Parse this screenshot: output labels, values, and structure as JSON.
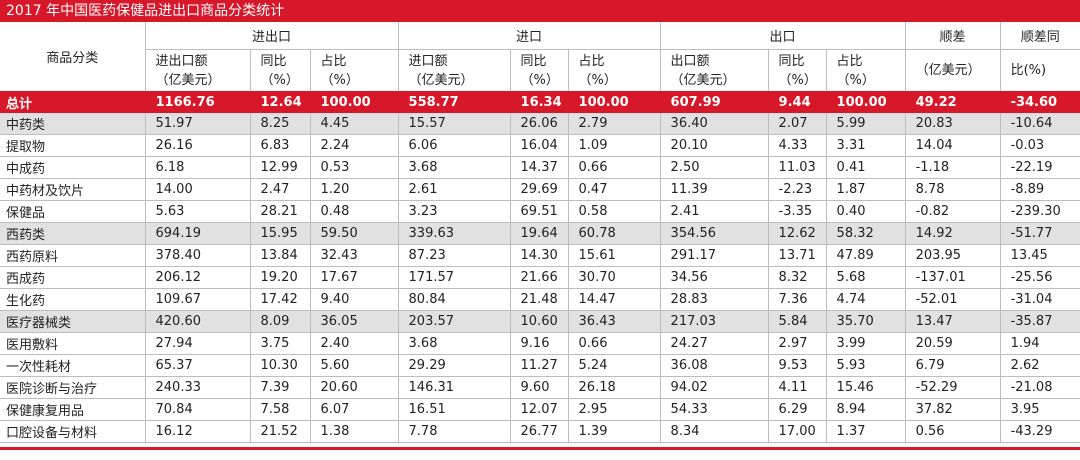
{
  "title": "2017 年中国医药保健品进出口商品分类统计",
  "table": {
    "first_header": "商品分类",
    "groups": [
      "进出口",
      "进口",
      "出口"
    ],
    "balance_header": [
      "顺差",
      "（亿美元）"
    ],
    "balance_yoy_header": [
      "顺差同",
      "比(%)"
    ],
    "sub_headers": [
      [
        "进出口额",
        "（亿美元）"
      ],
      [
        "同比",
        "（%）"
      ],
      [
        "占比",
        "（%）"
      ],
      [
        "进口额",
        "（亿美元）"
      ],
      [
        "同比",
        "（%）"
      ],
      [
        "占比",
        "（%）"
      ],
      [
        "出口额",
        "（亿美元）"
      ],
      [
        "同比",
        "（%）"
      ],
      [
        "占比",
        "（%）"
      ]
    ],
    "total": [
      "总计",
      "1166.76",
      "12.64",
      "100.00",
      "558.77",
      "16.34",
      "100.00",
      "607.99",
      "9.44",
      "100.00",
      "49.22",
      "-34.60"
    ],
    "rows": [
      [
        "中药类",
        "51.97",
        "8.25",
        "4.45",
        "15.57",
        "26.06",
        "2.79",
        "36.40",
        "2.07",
        "5.99",
        "20.83",
        "-10.64"
      ],
      [
        "提取物",
        "26.16",
        "6.83",
        "2.24",
        "6.06",
        "16.04",
        "1.09",
        "20.10",
        "4.33",
        "3.31",
        "14.04",
        "-0.03"
      ],
      [
        "中成药",
        "6.18",
        "12.99",
        "0.53",
        "3.68",
        "14.37",
        "0.66",
        "2.50",
        "11.03",
        "0.41",
        "-1.18",
        "-22.19"
      ],
      [
        "中药材及饮片",
        "14.00",
        "2.47",
        "1.20",
        "2.61",
        "29.69",
        "0.47",
        "11.39",
        "-2.23",
        "1.87",
        "8.78",
        "-8.89"
      ],
      [
        "保健品",
        "5.63",
        "28.21",
        "0.48",
        "3.23",
        "69.51",
        "0.58",
        "2.41",
        "-3.35",
        "0.40",
        "-0.82",
        "-239.30"
      ],
      [
        "西药类",
        "694.19",
        "15.95",
        "59.50",
        "339.63",
        "19.64",
        "60.78",
        "354.56",
        "12.62",
        "58.32",
        "14.92",
        "-51.77"
      ],
      [
        "西药原料",
        "378.40",
        "13.84",
        "32.43",
        "87.23",
        "14.30",
        "15.61",
        "291.17",
        "13.71",
        "47.89",
        "203.95",
        "13.45"
      ],
      [
        "西成药",
        "206.12",
        "19.20",
        "17.67",
        "171.57",
        "21.66",
        "30.70",
        "34.56",
        "8.32",
        "5.68",
        "-137.01",
        "-25.56"
      ],
      [
        "生化药",
        "109.67",
        "17.42",
        "9.40",
        "80.84",
        "21.48",
        "14.47",
        "28.83",
        "7.36",
        "4.74",
        "-52.01",
        "-31.04"
      ],
      [
        "医疗器械类",
        "420.60",
        "8.09",
        "36.05",
        "203.57",
        "10.60",
        "36.43",
        "217.03",
        "5.84",
        "35.70",
        "13.47",
        "-35.87"
      ],
      [
        "医用敷料",
        "27.94",
        "3.75",
        "2.40",
        "3.68",
        "9.16",
        "0.66",
        "24.27",
        "2.97",
        "3.99",
        "20.59",
        "1.94"
      ],
      [
        "一次性耗材",
        "65.37",
        "10.30",
        "5.60",
        "29.29",
        "11.27",
        "5.24",
        "36.08",
        "9.53",
        "5.93",
        "6.79",
        "2.62"
      ],
      [
        "医院诊断与治疗",
        "240.33",
        "7.39",
        "20.60",
        "146.31",
        "9.60",
        "26.18",
        "94.02",
        "4.11",
        "15.46",
        "-52.29",
        "-21.08"
      ],
      [
        "保健康复用品",
        "70.84",
        "7.58",
        "6.07",
        "16.51",
        "12.07",
        "2.95",
        "54.33",
        "6.29",
        "8.94",
        "37.82",
        "3.95"
      ],
      [
        "口腔设备与材料",
        "16.12",
        "21.52",
        "1.38",
        "7.78",
        "26.77",
        "1.39",
        "8.34",
        "17.00",
        "1.37",
        "0.56",
        "-43.29"
      ]
    ]
  }
}
